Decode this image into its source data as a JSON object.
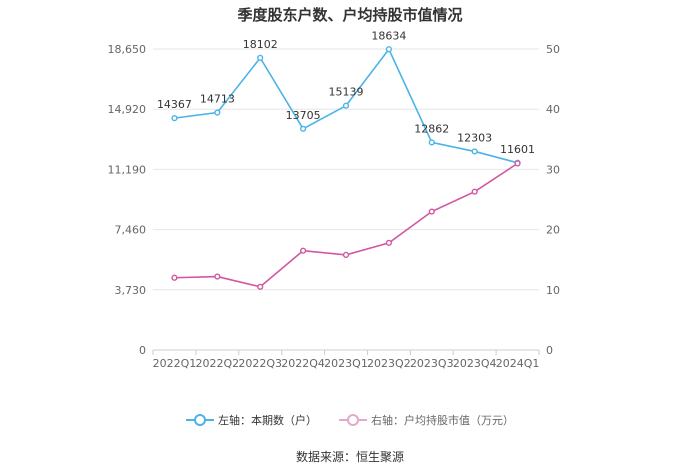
{
  "chart_data": {
    "type": "line",
    "title": "季度股东户数、户均持股市值情况",
    "categories": [
      "2022Q1",
      "2022Q2",
      "2022Q3",
      "2022Q4",
      "2023Q1",
      "2023Q2",
      "2023Q3",
      "2023Q4",
      "2024Q1"
    ],
    "left_axis": {
      "ticks": [
        "0",
        "3,730",
        "7,460",
        "11,190",
        "14,920",
        "18,650"
      ],
      "min": 0,
      "max": 18650
    },
    "right_axis": {
      "ticks": [
        "0",
        "10",
        "20",
        "30",
        "40",
        "50"
      ],
      "min": 0,
      "max": 50
    },
    "series": [
      {
        "name": "左轴：本期数（户）",
        "axis": "left",
        "color": "#4ab3e8",
        "values": [
          14367,
          14713,
          18102,
          13705,
          15139,
          18634,
          12862,
          12303,
          11601
        ],
        "labels": [
          "14367",
          "14713",
          "18102",
          "13705",
          "15139",
          "18634",
          "12862",
          "12303",
          "11601"
        ]
      },
      {
        "name": "右轴：户均持股市值（万元）",
        "axis": "right",
        "color": "#d2559f",
        "values": [
          12.0,
          12.2,
          10.5,
          16.5,
          15.8,
          17.8,
          23.0,
          26.3,
          31.0
        ]
      }
    ],
    "grid": true,
    "legend_position": "bottom"
  },
  "source": "数据来源：恒生聚源"
}
